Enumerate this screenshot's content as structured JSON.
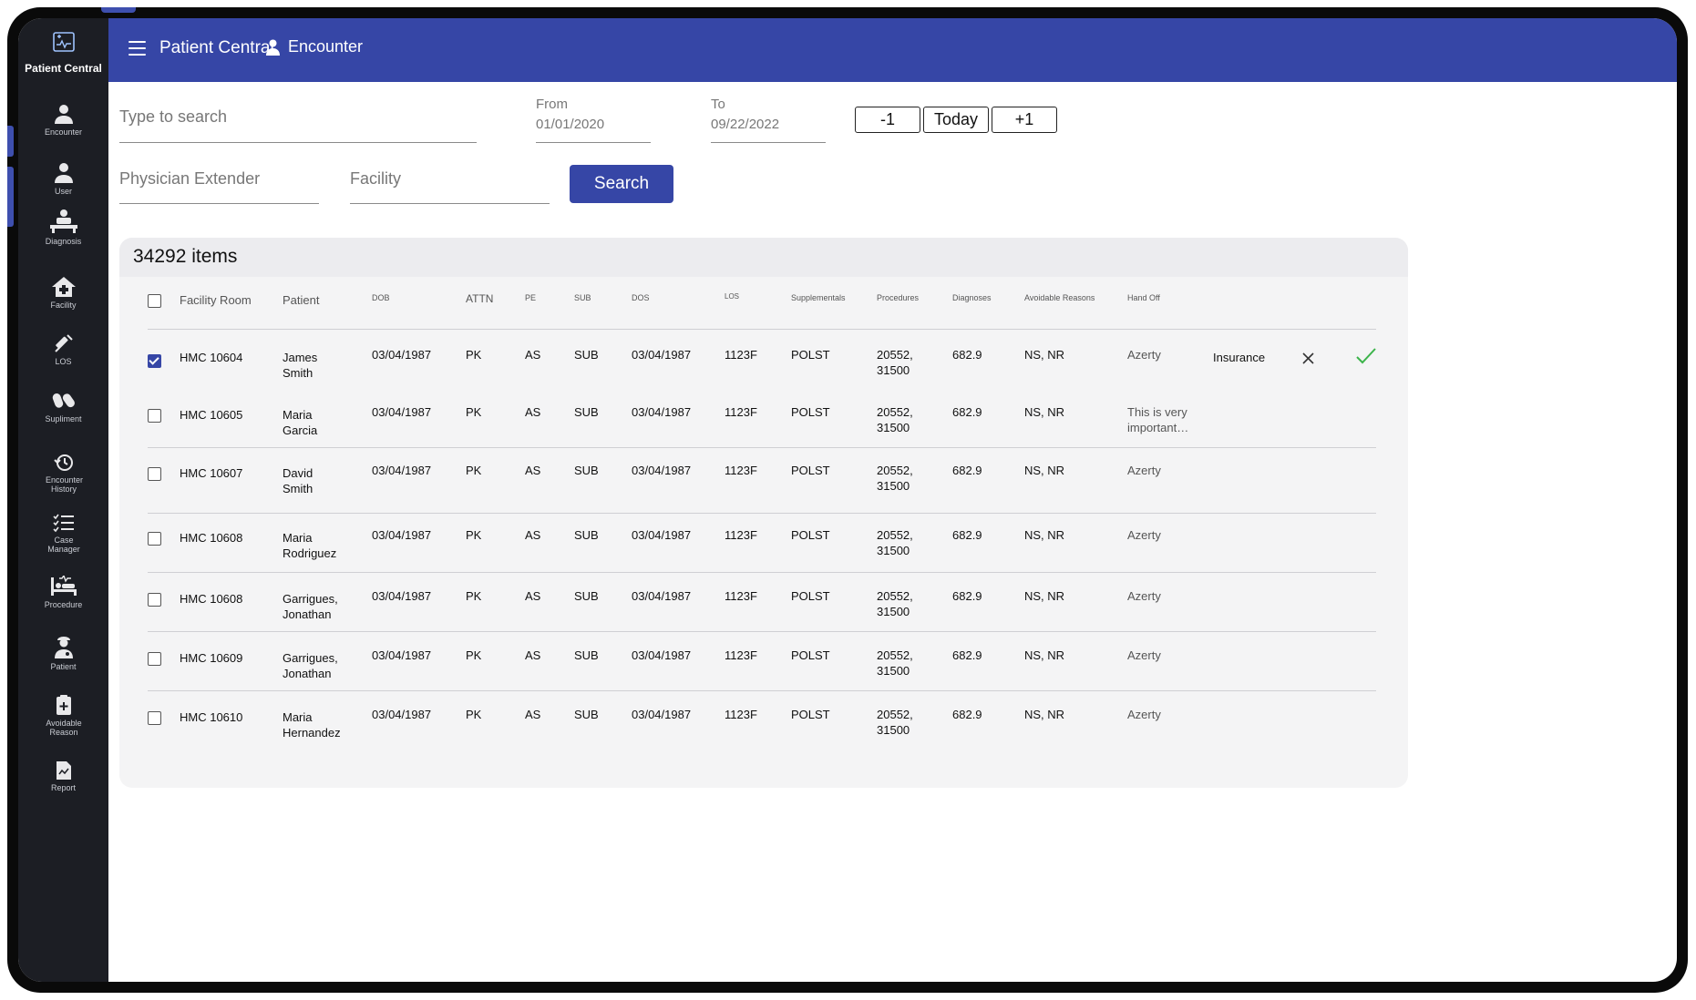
{
  "app": {
    "title": "Patient Central"
  },
  "header": {
    "breadcrumb": "Encounter"
  },
  "sidebar": {
    "brand": "Patient Central",
    "items": [
      {
        "label": "Encounter",
        "icon": "stethoscope-user-icon"
      },
      {
        "label": "User",
        "icon": "user-icon"
      },
      {
        "label": "Diagnosis",
        "icon": "diagnosis-icon"
      },
      {
        "label": "Facility",
        "icon": "facility-icon"
      },
      {
        "label": "LOS",
        "icon": "syringe-icon"
      },
      {
        "label": "Supliment",
        "icon": "pills-icon"
      },
      {
        "label": "Encounter History",
        "icon": "history-icon"
      },
      {
        "label": "Case Manager",
        "icon": "checklist-icon"
      },
      {
        "label": "Procedure",
        "icon": "bed-icon"
      },
      {
        "label": "Patient",
        "icon": "patient-icon"
      },
      {
        "label": "Avoidable Reason",
        "icon": "clipboard-plus-icon"
      },
      {
        "label": "Report",
        "icon": "report-icon"
      }
    ]
  },
  "filters": {
    "search_placeholder": "Type to search",
    "from_label": "From",
    "from_value": "01/01/2020",
    "to_label": "To",
    "to_value": "09/22/2022",
    "minus_label": "-1",
    "today_label": "Today",
    "plus_label": "+1",
    "physician_placeholder": "Physician Extender",
    "facility_placeholder": "Facility",
    "search_label": "Search"
  },
  "table": {
    "count_label": "34292 items",
    "columns": [
      "Facility Room",
      "Patient",
      "DOB",
      "ATTN",
      "PE",
      "SUB",
      "DOS",
      "LOS",
      "Supplementals",
      "Procedures",
      "Diagnoses",
      "Avoidable Reasons",
      "Hand Off"
    ],
    "rows": [
      {
        "room": "HMC 10604",
        "patient": [
          "James",
          "Smith"
        ],
        "dob": "03/04/1987",
        "attn": "PK",
        "pe": "AS",
        "sub": "SUB",
        "dos": "03/04/1987",
        "los": "1123F",
        "supp": "POLST",
        "proc": [
          "20552,",
          "31500"
        ],
        "diag": "682.9",
        "avoid": "NS, NR",
        "handoff": [
          "Azerty"
        ],
        "checked": true,
        "extra": "Insurance"
      },
      {
        "room": "HMC 10605",
        "patient": [
          "Maria",
          "Garcia"
        ],
        "dob": "03/04/1987",
        "attn": "PK",
        "pe": "AS",
        "sub": "SUB",
        "dos": "03/04/1987",
        "los": "1123F",
        "supp": "POLST",
        "proc": [
          "20552,",
          "31500"
        ],
        "diag": "682.9",
        "avoid": "NS, NR",
        "handoff": [
          "This is very",
          "important…"
        ],
        "checked": false
      },
      {
        "room": "HMC 10607",
        "patient": [
          "David",
          "Smith"
        ],
        "dob": "03/04/1987",
        "attn": "PK",
        "pe": "AS",
        "sub": "SUB",
        "dos": "03/04/1987",
        "los": "1123F",
        "supp": "POLST",
        "proc": [
          "20552,",
          "31500"
        ],
        "diag": "682.9",
        "avoid": "NS, NR",
        "handoff": [
          "Azerty"
        ],
        "checked": false
      },
      {
        "room": "HMC 10608",
        "patient": [
          "Maria",
          "Rodriguez"
        ],
        "dob": "03/04/1987",
        "attn": "PK",
        "pe": "AS",
        "sub": "SUB",
        "dos": "03/04/1987",
        "los": "1123F",
        "supp": "POLST",
        "proc": [
          "20552,",
          "31500"
        ],
        "diag": "682.9",
        "avoid": "NS, NR",
        "handoff": [
          "Azerty"
        ],
        "checked": false
      },
      {
        "room": "HMC 10608",
        "patient": [
          "Garrigues,",
          "Jonathan"
        ],
        "dob": "03/04/1987",
        "attn": "PK",
        "pe": "AS",
        "sub": "SUB",
        "dos": "03/04/1987",
        "los": "1123F",
        "supp": "POLST",
        "proc": [
          "20552,",
          "31500"
        ],
        "diag": "682.9",
        "avoid": "NS, NR",
        "handoff": [
          "Azerty"
        ],
        "checked": false
      },
      {
        "room": "HMC 10609",
        "patient": [
          "Garrigues,",
          "Jonathan"
        ],
        "dob": "03/04/1987",
        "attn": "PK",
        "pe": "AS",
        "sub": "SUB",
        "dos": "03/04/1987",
        "los": "1123F",
        "supp": "POLST",
        "proc": [
          "20552,",
          "31500"
        ],
        "diag": "682.9",
        "avoid": "NS, NR",
        "handoff": [
          "Azerty"
        ],
        "checked": false
      },
      {
        "room": "HMC 10610",
        "patient": [
          "Maria",
          "Hernandez"
        ],
        "dob": "03/04/1987",
        "attn": "PK",
        "pe": "AS",
        "sub": "SUB",
        "dos": "03/04/1987",
        "los": "1123F",
        "supp": "POLST",
        "proc": [
          "20552,",
          "31500"
        ],
        "diag": "682.9",
        "avoid": "NS, NR",
        "handoff": [
          "Azerty"
        ],
        "checked": false
      }
    ]
  },
  "colors": {
    "primary": "#3646a6",
    "sidebar": "#1c1e24",
    "accept": "#3cb44b"
  }
}
